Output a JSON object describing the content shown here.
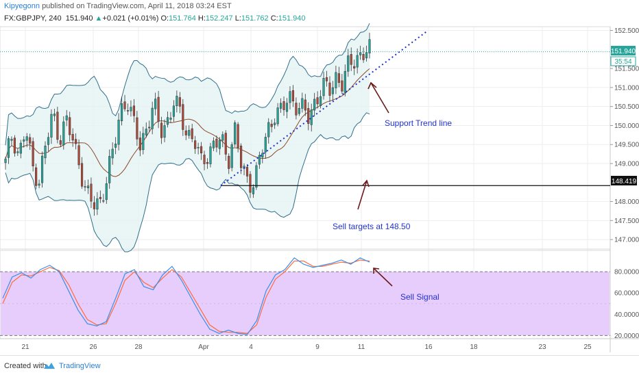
{
  "header": {
    "author": "Kipyegonn",
    "published_text": "published on TradingView.com, April 11, 2018 03:24 EST",
    "symbol": "FX:GBPJPY, 240",
    "price": "151.940",
    "up_arrow": "▲",
    "change": "+0.021 (+0.01%)",
    "o_label": "O:",
    "o_value": "151.764",
    "h_label": "H:",
    "h_value": "152.247",
    "l_label": "L:",
    "l_value": "151.762",
    "c_label": "C:",
    "c_value": "151.940"
  },
  "annotations": {
    "support": "Support Trend line",
    "sell_targets": "Sell targets at 148.50",
    "sell_signal": "Sell Signal"
  },
  "price_tags": {
    "last_price": "151.940",
    "countdown": "35:54",
    "level": "148.419"
  },
  "footer": {
    "created_with": "Created with",
    "brand": "TradingView"
  },
  "colors": {
    "bull": "#26a69a",
    "bear": "#b04a3a",
    "band": "#2f6f8a",
    "basis": "#8b4a2b",
    "trend": "#1f2fc8",
    "annotation_text": "#2233cc",
    "arrow": "#6b1a1a",
    "stoch_k": "#3b8ee8",
    "stoch_d": "#ff6a3d",
    "stoch_fill": "#e7cdfb"
  },
  "chart_data": {
    "type": "candlestick",
    "price_axis": {
      "ticks": [
        "152.500",
        "151.940",
        "151.500",
        "151.000",
        "150.500",
        "150.000",
        "149.500",
        "149.000",
        "148.419",
        "148.000",
        "147.500",
        "147.000"
      ],
      "range": [
        146.75,
        152.6
      ]
    },
    "time_axis": {
      "ticks": [
        "21",
        "26",
        "28",
        "Apr",
        "4",
        "9",
        "11",
        "16",
        "18",
        "23",
        "25"
      ]
    },
    "horizontal_level": 148.419,
    "trend_line": {
      "from_price": 148.42,
      "to_price": 152.47
    },
    "price_segments": [
      [
        149.0,
        149.8,
        149.2,
        149.9,
        148.9,
        148.6,
        149.5,
        150.3,
        149.7,
        150.1,
        149.6,
        149.0,
        148.2,
        147.9,
        148.0,
        148.6,
        149.3,
        150.4,
        150.7,
        150.0,
        149.5,
        150.0,
        150.5,
        149.9,
        150.1,
        150.6,
        150.3,
        149.8,
        149.6,
        149.0,
        149.3,
        149.5,
        149.6,
        149.1,
        149.9,
        148.9,
        148.5,
        148.6,
        149.3,
        149.9,
        150.4,
        150.3,
        150.8,
        150.6,
        150.4,
        150.2,
        150.7,
        151.0,
        150.9,
        151.3,
        151.1,
        151.6,
        151.8,
        151.9,
        151.94
      ]
    ],
    "stochastic": {
      "levels": [
        "80.0000",
        "60.0000",
        "40.0000",
        "20.0000"
      ],
      "range": [
        17,
        100
      ],
      "k": [
        55,
        75,
        79,
        74,
        82,
        86,
        80,
        62,
        44,
        31,
        29,
        33,
        55,
        78,
        82,
        66,
        63,
        77,
        85,
        72,
        56,
        40,
        26,
        22,
        25,
        22,
        21,
        34,
        62,
        77,
        82,
        93,
        87,
        84,
        86,
        88,
        91,
        87,
        93,
        89
      ],
      "d": [
        50,
        70,
        77,
        76,
        80,
        84,
        81,
        68,
        50,
        35,
        30,
        31,
        50,
        72,
        80,
        70,
        65,
        74,
        82,
        75,
        60,
        45,
        30,
        24,
        23,
        23,
        22,
        30,
        56,
        73,
        80,
        90,
        90,
        85,
        85,
        87,
        89,
        88,
        91,
        90
      ]
    }
  }
}
